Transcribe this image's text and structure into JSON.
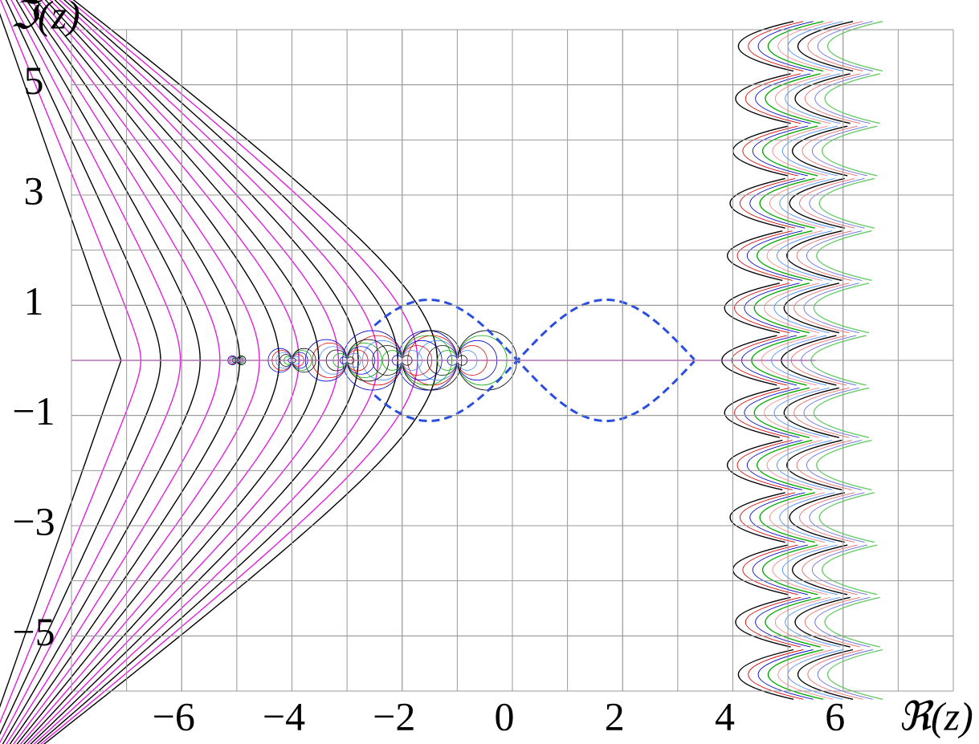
{
  "chart_data": {
    "type": "contour",
    "xlabel": "ℜ(z)",
    "ylabel": "ℑ(z)",
    "xlim": [
      -8,
      8
    ],
    "ylim": [
      -6,
      6
    ],
    "xticks": [
      {
        "value": -6,
        "label": "−6"
      },
      {
        "value": -4,
        "label": "−4"
      },
      {
        "value": -2,
        "label": "−2"
      },
      0,
      2,
      4,
      6
    ],
    "yticks": [
      5,
      3,
      1,
      {
        "value": -1,
        "label": "−1"
      },
      {
        "value": -3,
        "label": "−3"
      },
      {
        "value": -5,
        "label": "−5"
      }
    ],
    "grid": true
  }
}
